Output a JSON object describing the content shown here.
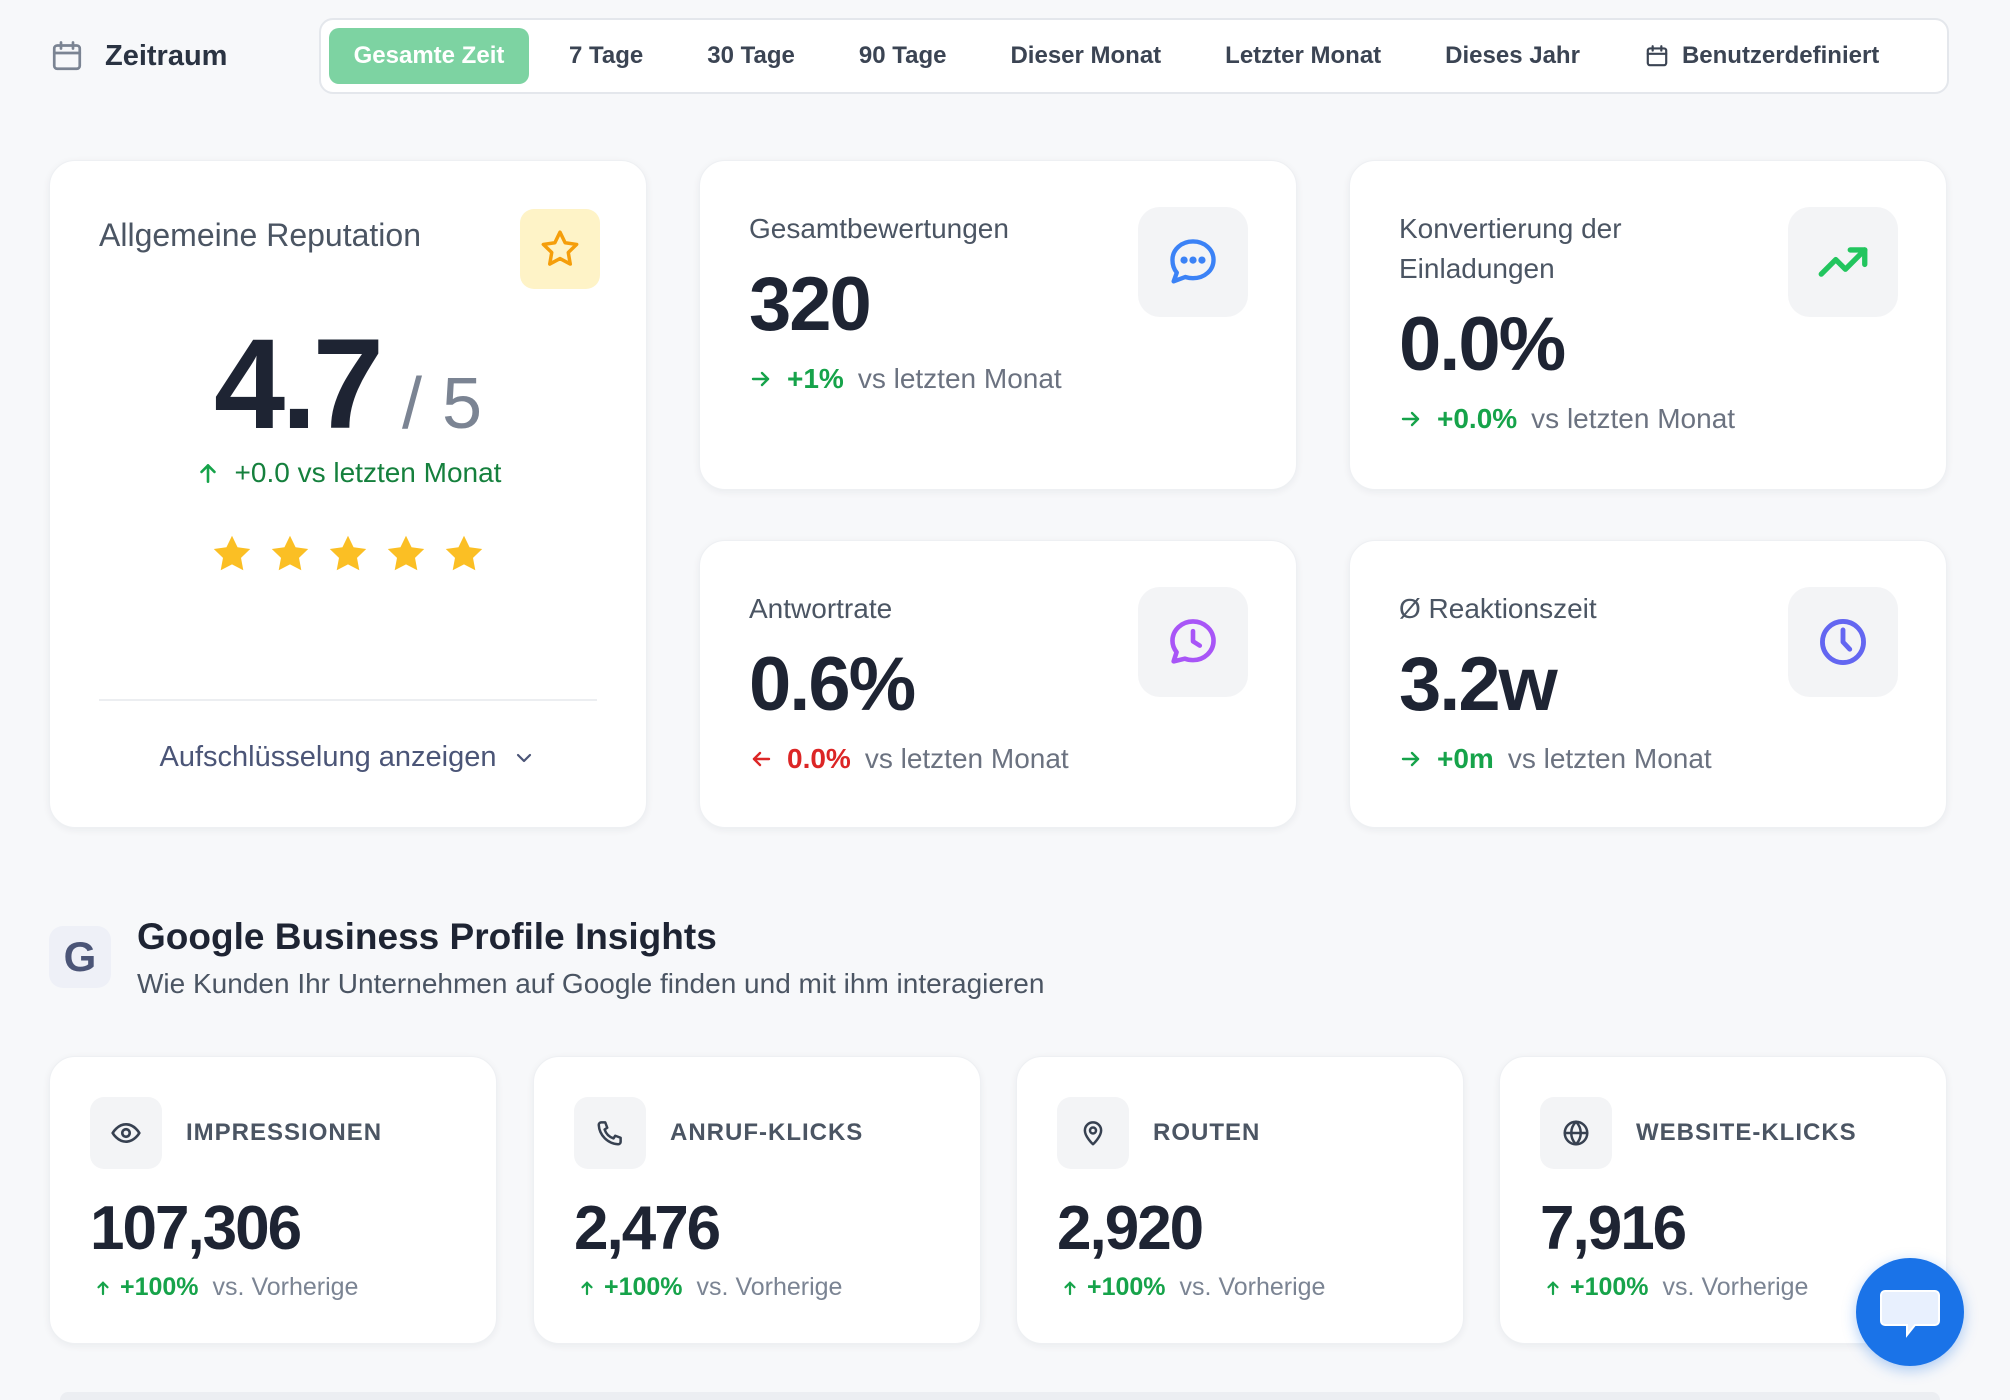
{
  "period": {
    "label": "Zeitraum",
    "icon": "calendar-icon",
    "tabs": [
      {
        "label": "Gesamte Zeit",
        "active": true
      },
      {
        "label": "7 Tage"
      },
      {
        "label": "30 Tage"
      },
      {
        "label": "90 Tage"
      },
      {
        "label": "Dieser Monat"
      },
      {
        "label": "Letzter Monat"
      },
      {
        "label": "Dieses Jahr"
      },
      {
        "label": "Benutzerdefiniert",
        "icon": "calendar-icon"
      }
    ]
  },
  "reputation": {
    "title": "Allgemeine Reputation",
    "icon": "star-icon",
    "score": "4.7",
    "max": "/ 5",
    "change": "+0.0 vs letzten Monat",
    "stars_filled": 5,
    "stars_total": 5,
    "breakdown_label": "Aufschlüsselung anzeigen"
  },
  "kpis": {
    "reviews": {
      "title": "Gesamtbewertungen",
      "value": "320",
      "change": "+1%",
      "suffix": "vs letzten Monat",
      "icon": "chat-bubble-icon"
    },
    "conversion": {
      "title": "Konvertierung der Einladungen",
      "value": "0.0%",
      "change": "+0.0%",
      "suffix": "vs letzten Monat",
      "icon": "trending-up-icon"
    },
    "response_rate": {
      "title": "Antwortrate",
      "value": "0.6%",
      "change": "0.0%",
      "suffix": "vs letzten Monat",
      "icon": "message-clock-icon"
    },
    "reaction_time": {
      "title": "Ø Reaktionszeit",
      "value": "3.2w",
      "change": "+0m",
      "suffix": "vs letzten Monat",
      "icon": "clock-icon"
    }
  },
  "insights": {
    "logo": "G",
    "title": "Google Business Profile Insights",
    "subtitle": "Wie Kunden Ihr Unternehmen auf Google finden und mit ihm interagieren",
    "stats": [
      {
        "label": "IMPRESSIONEN",
        "value": "107,306",
        "change": "+100%",
        "suffix": "vs. Vorherige",
        "icon": "eye-icon"
      },
      {
        "label": "ANRUF-KLICKS",
        "value": "2,476",
        "change": "+100%",
        "suffix": "vs. Vorherige",
        "icon": "phone-icon"
      },
      {
        "label": "ROUTEN",
        "value": "2,920",
        "change": "+100%",
        "suffix": "vs. Vorherige",
        "icon": "map-pin-icon"
      },
      {
        "label": "WEBSITE-KLICKS",
        "value": "7,916",
        "change": "+100%",
        "suffix": "vs. Vorherige",
        "icon": "globe-icon"
      }
    ]
  },
  "colors": {
    "accent_green": "#7dd3a2",
    "positive": "#16a34a",
    "negative": "#dc2626",
    "star": "#fbbf24",
    "chat_button": "#1a73e8"
  }
}
